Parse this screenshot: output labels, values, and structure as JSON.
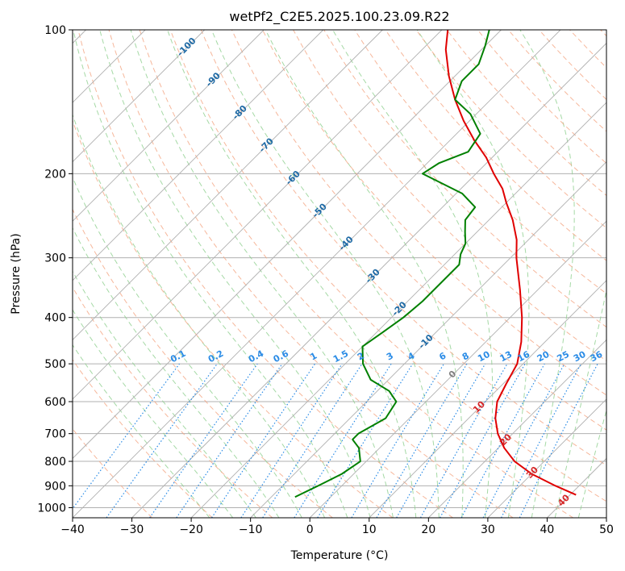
{
  "chart_data": {
    "type": "skew-t log-p",
    "title": "wetPf2_C2E5.2025.100.23.09.R22",
    "xlabel": "Temperature (°C)",
    "ylabel": "Pressure (hPa)",
    "xlim": [
      -40,
      50
    ],
    "ylim": [
      1050,
      100
    ],
    "y_scale": "log",
    "grid": true,
    "x_ticks": [
      -40,
      -30,
      -20,
      -10,
      0,
      10,
      20,
      30,
      40,
      50
    ],
    "y_ticks": [
      100,
      200,
      300,
      400,
      500,
      600,
      700,
      800,
      900,
      1000
    ],
    "isotherm_spacing_c": 10,
    "dry_adiabat_labels_c": [
      -100,
      -90,
      -80,
      -70,
      -60,
      -50,
      -40,
      -30,
      -20,
      -10,
      0,
      10,
      20,
      30,
      40
    ],
    "mixing_ratio_labels_gkg": [
      "0.1",
      "0.2",
      "0.4",
      "0.6",
      "1",
      "1.5",
      "2",
      "3",
      "4",
      "6",
      "8",
      "10",
      "13",
      "16",
      "20",
      "25",
      "30",
      "36"
    ],
    "mixing_ratio_values_gkg": [
      0.1,
      0.2,
      0.4,
      0.6,
      1,
      1.5,
      2,
      3,
      4,
      6,
      8,
      10,
      13,
      16,
      20,
      25,
      30,
      36
    ],
    "colors": {
      "temperature": "#e00000",
      "dewpoint": "#008000",
      "isotherm": "#b0b0b0",
      "dry_adiabat": "#f4a582",
      "moist_adiabat": "#8fcf8f",
      "mixing_ratio": "#2b8ce6",
      "dry_adiabat_label_cold": "#1f6aa5",
      "dry_adiabat_label_warm": "#d62728",
      "dry_adiabat_label_zero": "#808080"
    },
    "series": [
      {
        "id": "temperature",
        "points": [
          [
            940,
            41
          ],
          [
            900,
            36
          ],
          [
            850,
            30
          ],
          [
            800,
            25
          ],
          [
            750,
            21
          ],
          [
            700,
            17.5
          ],
          [
            650,
            14.5
          ],
          [
            600,
            12
          ],
          [
            550,
            10.5
          ],
          [
            500,
            9
          ],
          [
            450,
            6
          ],
          [
            400,
            2
          ],
          [
            350,
            -3
          ],
          [
            300,
            -9
          ],
          [
            275,
            -12
          ],
          [
            250,
            -16
          ],
          [
            230,
            -20
          ],
          [
            215,
            -23
          ],
          [
            200,
            -27
          ],
          [
            185,
            -31
          ],
          [
            170,
            -36
          ],
          [
            155,
            -41
          ],
          [
            140,
            -46
          ],
          [
            125,
            -51
          ],
          [
            110,
            -56
          ],
          [
            100,
            -59
          ]
        ]
      },
      {
        "id": "dewpoint",
        "points": [
          [
            950,
            -6
          ],
          [
            900,
            -4
          ],
          [
            850,
            -2
          ],
          [
            800,
            -1
          ],
          [
            750,
            -3.5
          ],
          [
            720,
            -6
          ],
          [
            700,
            -6
          ],
          [
            650,
            -4
          ],
          [
            600,
            -5
          ],
          [
            570,
            -8
          ],
          [
            540,
            -13
          ],
          [
            500,
            -17
          ],
          [
            460,
            -20
          ],
          [
            430,
            -19
          ],
          [
            400,
            -18
          ],
          [
            370,
            -17.5
          ],
          [
            340,
            -17.5
          ],
          [
            310,
            -17.5
          ],
          [
            295,
            -19
          ],
          [
            280,
            -20
          ],
          [
            265,
            -22
          ],
          [
            250,
            -24
          ],
          [
            235,
            -24.5
          ],
          [
            220,
            -29
          ],
          [
            200,
            -39
          ],
          [
            190,
            -38
          ],
          [
            180,
            -35
          ],
          [
            165,
            -36
          ],
          [
            150,
            -41
          ],
          [
            140,
            -46
          ],
          [
            128,
            -48
          ],
          [
            118,
            -48
          ],
          [
            108,
            -50
          ],
          [
            100,
            -52
          ]
        ]
      }
    ]
  }
}
